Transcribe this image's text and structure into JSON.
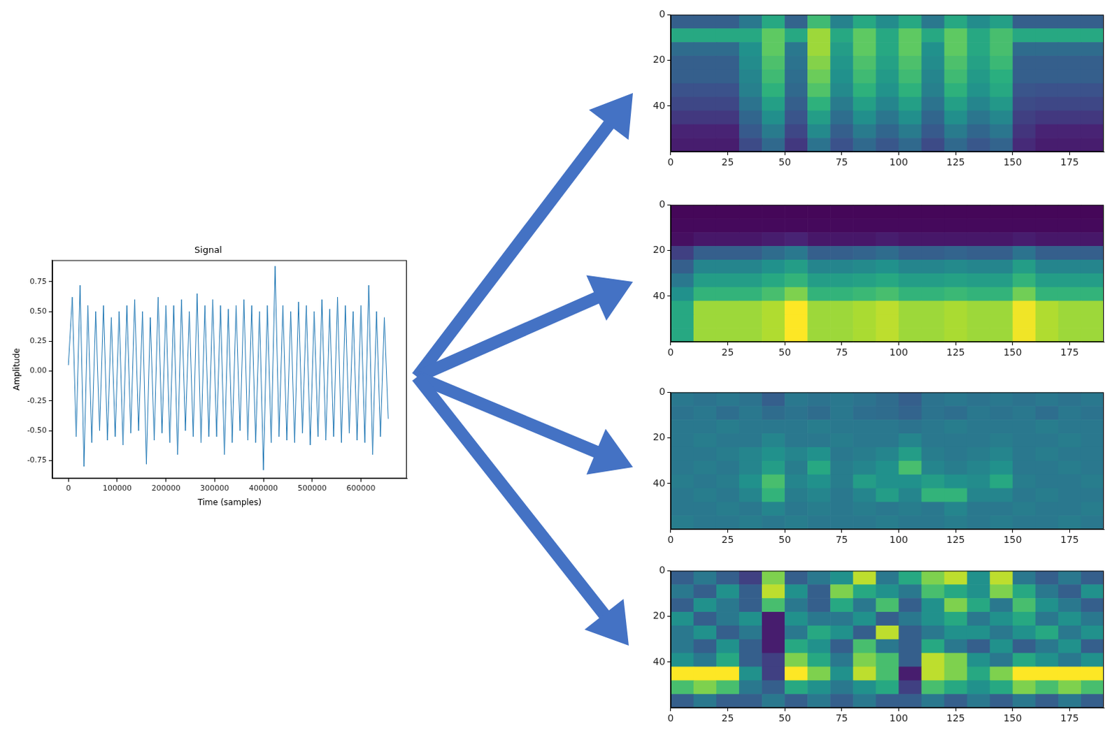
{
  "chart_data": [
    {
      "type": "line",
      "title": "Signal",
      "x_label": "Time (samples)",
      "y_label": "Amplitude",
      "color": "#1f77b4",
      "grid": false,
      "xlim": [
        -33000,
        694000
      ],
      "xticks": [
        0,
        100000,
        200000,
        300000,
        400000,
        500000,
        600000
      ],
      "ylim": [
        -0.9,
        0.93
      ],
      "yticks": [
        -0.75,
        {
          "value": -0.5,
          "label": "-0.50"
        },
        -0.25,
        {
          "value": 0,
          "label": "0.00"
        },
        0.25,
        {
          "value": 0.5,
          "label": "0.50"
        },
        0.75
      ],
      "x": [
        0,
        8000,
        16000,
        24000,
        32000,
        40000,
        48000,
        56000,
        64000,
        72000,
        80000,
        88000,
        96000,
        104000,
        112000,
        120000,
        128000,
        136000,
        144000,
        152000,
        160000,
        168000,
        176000,
        184000,
        192000,
        200000,
        208000,
        216000,
        224000,
        232000,
        240000,
        248000,
        256000,
        264000,
        272000,
        280000,
        288000,
        296000,
        304000,
        312000,
        320000,
        328000,
        336000,
        344000,
        352000,
        360000,
        368000,
        376000,
        384000,
        392000,
        400000,
        408000,
        416000,
        424000,
        432000,
        440000,
        448000,
        456000,
        464000,
        472000,
        480000,
        488000,
        496000,
        504000,
        512000,
        520000,
        528000,
        536000,
        544000,
        552000,
        560000,
        568000,
        576000,
        584000,
        592000,
        600000,
        608000,
        616000,
        624000,
        632000,
        640000,
        648000,
        656000
      ],
      "values": [
        0.05,
        0.62,
        -0.55,
        0.72,
        -0.8,
        0.55,
        -0.6,
        0.5,
        -0.5,
        0.55,
        -0.58,
        0.45,
        -0.55,
        0.5,
        -0.62,
        0.55,
        -0.52,
        0.6,
        -0.5,
        0.5,
        -0.78,
        0.45,
        -0.58,
        0.62,
        -0.52,
        0.55,
        -0.6,
        0.55,
        -0.7,
        0.6,
        -0.5,
        0.5,
        -0.55,
        0.65,
        -0.6,
        0.55,
        -0.55,
        0.6,
        -0.55,
        0.55,
        -0.7,
        0.52,
        -0.6,
        0.55,
        -0.5,
        0.6,
        -0.58,
        0.55,
        -0.6,
        0.5,
        -0.83,
        0.55,
        -0.6,
        0.88,
        -0.55,
        0.55,
        -0.58,
        0.5,
        -0.6,
        0.58,
        -0.52,
        0.55,
        -0.62,
        0.5,
        -0.55,
        0.6,
        -0.58,
        0.52,
        -0.55,
        0.62,
        -0.6,
        0.55,
        -0.52,
        0.5,
        -0.58,
        0.55,
        -0.6,
        0.72,
        -0.7,
        0.5,
        -0.55,
        0.45,
        -0.4
      ]
    },
    {
      "type": "heatmap",
      "grid": false,
      "xlim": [
        0,
        190
      ],
      "ylim": [
        60,
        0
      ],
      "xticks": [
        0,
        25,
        50,
        75,
        100,
        125,
        150,
        175
      ],
      "yticks": [
        0,
        20,
        40
      ],
      "x_bins": [
        0,
        10,
        20,
        30,
        40,
        50,
        60,
        70,
        80,
        90,
        100,
        110,
        120,
        130,
        140,
        150,
        160,
        170,
        180,
        190
      ],
      "y_bins": [
        0,
        6,
        12,
        18,
        24,
        30,
        36,
        42,
        48,
        54,
        60
      ],
      "clim": [
        0,
        1
      ],
      "cells": [
        [
          0.3,
          0.3,
          0.3,
          0.4,
          0.6,
          0.32,
          0.68,
          0.44,
          0.6,
          0.48,
          0.6,
          0.4,
          0.6,
          0.48,
          0.56,
          0.3,
          0.3,
          0.3,
          0.3
        ],
        [
          0.6,
          0.6,
          0.6,
          0.6,
          0.75,
          0.6,
          0.85,
          0.6,
          0.75,
          0.6,
          0.75,
          0.6,
          0.75,
          0.6,
          0.7,
          0.6,
          0.6,
          0.6,
          0.6
        ],
        [
          0.35,
          0.35,
          0.35,
          0.5,
          0.75,
          0.4,
          0.85,
          0.55,
          0.75,
          0.6,
          0.75,
          0.5,
          0.75,
          0.6,
          0.7,
          0.35,
          0.35,
          0.35,
          0.35
        ],
        [
          0.3,
          0.3,
          0.3,
          0.48,
          0.71,
          0.38,
          0.81,
          0.52,
          0.71,
          0.57,
          0.71,
          0.48,
          0.71,
          0.57,
          0.67,
          0.3,
          0.3,
          0.3,
          0.3
        ],
        [
          0.3,
          0.3,
          0.3,
          0.45,
          0.68,
          0.36,
          0.77,
          0.5,
          0.68,
          0.54,
          0.68,
          0.45,
          0.68,
          0.54,
          0.63,
          0.3,
          0.3,
          0.3,
          0.3
        ],
        [
          0.25,
          0.25,
          0.25,
          0.43,
          0.64,
          0.34,
          0.72,
          0.47,
          0.64,
          0.51,
          0.64,
          0.43,
          0.64,
          0.51,
          0.6,
          0.26,
          0.25,
          0.25,
          0.25
        ],
        [
          0.22,
          0.22,
          0.22,
          0.38,
          0.56,
          0.3,
          0.64,
          0.41,
          0.56,
          0.45,
          0.56,
          0.38,
          0.56,
          0.45,
          0.53,
          0.23,
          0.22,
          0.22,
          0.22
        ],
        [
          0.18,
          0.18,
          0.18,
          0.33,
          0.49,
          0.26,
          0.55,
          0.36,
          0.49,
          0.39,
          0.49,
          0.33,
          0.49,
          0.39,
          0.46,
          0.2,
          0.18,
          0.18,
          0.18
        ],
        [
          0.12,
          0.12,
          0.12,
          0.28,
          0.41,
          0.22,
          0.47,
          0.3,
          0.41,
          0.33,
          0.41,
          0.28,
          0.41,
          0.33,
          0.39,
          0.17,
          0.12,
          0.12,
          0.12
        ],
        [
          0.1,
          0.1,
          0.1,
          0.23,
          0.34,
          0.18,
          0.38,
          0.25,
          0.34,
          0.27,
          0.34,
          0.23,
          0.34,
          0.27,
          0.32,
          0.14,
          0.1,
          0.1,
          0.1
        ]
      ]
    },
    {
      "type": "heatmap",
      "grid": false,
      "xlim": [
        0,
        190
      ],
      "ylim": [
        60,
        0
      ],
      "xticks": [
        0,
        25,
        50,
        75,
        100,
        125,
        150,
        175
      ],
      "yticks": [
        0,
        20,
        40
      ],
      "x_bins": [
        0,
        10,
        20,
        30,
        40,
        50,
        60,
        70,
        80,
        90,
        100,
        110,
        120,
        130,
        140,
        150,
        160,
        170,
        180,
        190
      ],
      "y_bins": [
        0,
        6,
        12,
        18,
        24,
        30,
        36,
        42,
        48,
        54,
        60
      ],
      "clim": [
        0,
        1
      ],
      "cells": [
        [
          0.02,
          0.02,
          0.02,
          0.02,
          0.02,
          0.02,
          0.02,
          0.02,
          0.02,
          0.02,
          0.02,
          0.02,
          0.02,
          0.02,
          0.02,
          0.02,
          0.02,
          0.02,
          0.02
        ],
        [
          0.03,
          0.03,
          0.03,
          0.03,
          0.03,
          0.03,
          0.03,
          0.03,
          0.03,
          0.03,
          0.03,
          0.03,
          0.03,
          0.03,
          0.03,
          0.03,
          0.03,
          0.03,
          0.03
        ],
        [
          0.05,
          0.08,
          0.08,
          0.08,
          0.1,
          0.12,
          0.08,
          0.08,
          0.08,
          0.1,
          0.08,
          0.08,
          0.08,
          0.08,
          0.08,
          0.1,
          0.08,
          0.08,
          0.08
        ],
        [
          0.2,
          0.3,
          0.3,
          0.3,
          0.35,
          0.4,
          0.3,
          0.3,
          0.32,
          0.35,
          0.3,
          0.3,
          0.32,
          0.3,
          0.3,
          0.38,
          0.3,
          0.3,
          0.3
        ],
        [
          0.3,
          0.45,
          0.45,
          0.45,
          0.5,
          0.55,
          0.45,
          0.45,
          0.47,
          0.5,
          0.45,
          0.45,
          0.47,
          0.45,
          0.45,
          0.55,
          0.45,
          0.45,
          0.45
        ],
        [
          0.4,
          0.55,
          0.55,
          0.55,
          0.6,
          0.65,
          0.55,
          0.55,
          0.57,
          0.6,
          0.55,
          0.55,
          0.57,
          0.55,
          0.55,
          0.65,
          0.55,
          0.55,
          0.55
        ],
        [
          0.5,
          0.65,
          0.65,
          0.65,
          0.7,
          0.8,
          0.65,
          0.65,
          0.67,
          0.7,
          0.65,
          0.65,
          0.67,
          0.65,
          0.65,
          0.78,
          0.65,
          0.65,
          0.65
        ],
        [
          0.6,
          0.85,
          0.85,
          0.85,
          0.88,
          1,
          0.85,
          0.85,
          0.87,
          0.9,
          0.85,
          0.85,
          0.87,
          0.85,
          0.85,
          0.98,
          0.88,
          0.85,
          0.85
        ],
        [
          0.6,
          0.85,
          0.85,
          0.85,
          0.88,
          1,
          0.85,
          0.85,
          0.87,
          0.9,
          0.85,
          0.85,
          0.87,
          0.85,
          0.85,
          0.98,
          0.88,
          0.85,
          0.85
        ],
        [
          0.6,
          0.85,
          0.85,
          0.85,
          0.88,
          1,
          0.85,
          0.85,
          0.87,
          0.9,
          0.85,
          0.85,
          0.87,
          0.85,
          0.85,
          0.98,
          0.88,
          0.85,
          0.85
        ]
      ]
    },
    {
      "type": "heatmap",
      "grid": false,
      "xlim": [
        0,
        190
      ],
      "ylim": [
        60,
        0
      ],
      "xticks": [
        0,
        25,
        50,
        75,
        100,
        125,
        150,
        175
      ],
      "yticks": [
        0,
        20,
        40
      ],
      "x_bins": [
        0,
        10,
        20,
        30,
        40,
        50,
        60,
        70,
        80,
        90,
        100,
        110,
        120,
        130,
        140,
        150,
        160,
        170,
        180,
        190
      ],
      "y_bins": [
        0,
        6,
        12,
        18,
        24,
        30,
        36,
        42,
        48,
        54,
        60
      ],
      "clim": [
        0,
        1
      ],
      "cells": [
        [
          0.4,
          0.38,
          0.4,
          0.38,
          0.3,
          0.4,
          0.38,
          0.4,
          0.38,
          0.35,
          0.3,
          0.38,
          0.4,
          0.38,
          0.4,
          0.38,
          0.4,
          0.38,
          0.4
        ],
        [
          0.38,
          0.4,
          0.36,
          0.4,
          0.35,
          0.38,
          0.35,
          0.4,
          0.36,
          0.35,
          0.32,
          0.38,
          0.36,
          0.4,
          0.38,
          0.4,
          0.36,
          0.4,
          0.38
        ],
        [
          0.4,
          0.4,
          0.42,
          0.4,
          0.4,
          0.4,
          0.42,
          0.4,
          0.4,
          0.4,
          0.38,
          0.4,
          0.42,
          0.4,
          0.4,
          0.4,
          0.42,
          0.4,
          0.4
        ],
        [
          0.4,
          0.42,
          0.4,
          0.4,
          0.45,
          0.4,
          0.4,
          0.42,
          0.4,
          0.4,
          0.45,
          0.4,
          0.4,
          0.4,
          0.42,
          0.4,
          0.4,
          0.42,
          0.4
        ],
        [
          0.4,
          0.4,
          0.42,
          0.45,
          0.5,
          0.45,
          0.5,
          0.4,
          0.42,
          0.45,
          0.55,
          0.42,
          0.4,
          0.42,
          0.45,
          0.4,
          0.42,
          0.4,
          0.4
        ],
        [
          0.4,
          0.42,
          0.4,
          0.45,
          0.55,
          0.42,
          0.6,
          0.42,
          0.45,
          0.5,
          0.7,
          0.45,
          0.42,
          0.45,
          0.5,
          0.4,
          0.4,
          0.42,
          0.4
        ],
        [
          0.42,
          0.4,
          0.42,
          0.5,
          0.7,
          0.45,
          0.5,
          0.42,
          0.55,
          0.5,
          0.5,
          0.55,
          0.5,
          0.48,
          0.6,
          0.42,
          0.4,
          0.4,
          0.42
        ],
        [
          0.4,
          0.42,
          0.4,
          0.45,
          0.65,
          0.42,
          0.45,
          0.4,
          0.45,
          0.55,
          0.45,
          0.65,
          0.65,
          0.45,
          0.45,
          0.4,
          0.42,
          0.4,
          0.4
        ],
        [
          0.4,
          0.4,
          0.42,
          0.4,
          0.45,
          0.4,
          0.42,
          0.4,
          0.42,
          0.4,
          0.42,
          0.4,
          0.45,
          0.4,
          0.4,
          0.42,
          0.4,
          0.4,
          0.42
        ],
        [
          0.42,
          0.4,
          0.4,
          0.42,
          0.4,
          0.42,
          0.4,
          0.4,
          0.4,
          0.42,
          0.4,
          0.4,
          0.42,
          0.4,
          0.42,
          0.4,
          0.4,
          0.42,
          0.4
        ]
      ]
    },
    {
      "type": "heatmap",
      "grid": false,
      "xlim": [
        0,
        190
      ],
      "ylim": [
        60,
        0
      ],
      "xticks": [
        0,
        25,
        50,
        75,
        100,
        125,
        150,
        175
      ],
      "yticks": [
        0,
        20,
        40
      ],
      "x_bins": [
        0,
        10,
        20,
        30,
        40,
        50,
        60,
        70,
        80,
        90,
        100,
        110,
        120,
        130,
        140,
        150,
        160,
        170,
        180,
        190
      ],
      "y_bins": [
        0,
        6,
        12,
        18,
        24,
        30,
        36,
        42,
        48,
        54,
        60
      ],
      "clim": [
        0,
        1
      ],
      "cells": [
        [
          0.3,
          0.4,
          0.3,
          0.2,
          0.8,
          0.3,
          0.4,
          0.5,
          0.9,
          0.4,
          0.6,
          0.8,
          0.9,
          0.5,
          0.9,
          0.4,
          0.3,
          0.4,
          0.3
        ],
        [
          0.4,
          0.3,
          0.5,
          0.3,
          0.9,
          0.5,
          0.3,
          0.8,
          0.6,
          0.5,
          0.4,
          0.7,
          0.6,
          0.5,
          0.8,
          0.6,
          0.4,
          0.3,
          0.5
        ],
        [
          0.3,
          0.5,
          0.4,
          0.3,
          0.7,
          0.4,
          0.3,
          0.6,
          0.4,
          0.7,
          0.3,
          0.5,
          0.8,
          0.6,
          0.4,
          0.7,
          0.5,
          0.4,
          0.3
        ],
        [
          0.5,
          0.3,
          0.4,
          0.5,
          0.1,
          0.5,
          0.4,
          0.4,
          0.5,
          0.3,
          0.4,
          0.5,
          0.6,
          0.4,
          0.5,
          0.6,
          0.4,
          0.5,
          0.4
        ],
        [
          0.4,
          0.5,
          0.3,
          0.4,
          0.1,
          0.4,
          0.6,
          0.5,
          0.3,
          0.9,
          0.3,
          0.4,
          0.5,
          0.5,
          0.4,
          0.5,
          0.6,
          0.4,
          0.5
        ],
        [
          0.4,
          0.3,
          0.5,
          0.3,
          0.1,
          0.6,
          0.5,
          0.3,
          0.7,
          0.4,
          0.3,
          0.6,
          0.4,
          0.3,
          0.5,
          0.3,
          0.4,
          0.5,
          0.3
        ],
        [
          0.5,
          0.4,
          0.6,
          0.3,
          0.2,
          0.8,
          0.6,
          0.4,
          0.8,
          0.7,
          0.3,
          0.9,
          0.8,
          0.5,
          0.4,
          0.6,
          0.5,
          0.4,
          0.5
        ],
        [
          1,
          1,
          1,
          0.5,
          0.2,
          1,
          0.8,
          0.5,
          0.9,
          0.7,
          0.1,
          0.9,
          0.8,
          0.6,
          0.8,
          1,
          1,
          1,
          1
        ],
        [
          0.7,
          0.8,
          0.7,
          0.4,
          0.3,
          0.6,
          0.5,
          0.4,
          0.5,
          0.6,
          0.2,
          0.7,
          0.6,
          0.5,
          0.6,
          0.8,
          0.7,
          0.8,
          0.7
        ],
        [
          0.3,
          0.4,
          0.3,
          0.3,
          0.4,
          0.3,
          0.4,
          0.3,
          0.4,
          0.3,
          0.3,
          0.4,
          0.3,
          0.4,
          0.3,
          0.4,
          0.3,
          0.4,
          0.3
        ]
      ]
    }
  ]
}
